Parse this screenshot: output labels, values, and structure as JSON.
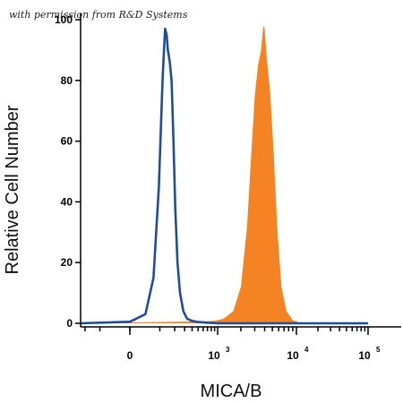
{
  "credit": "with permission from R&D Systems",
  "chart_data": {
    "type": "area",
    "title": "",
    "xlabel": "MICA/B",
    "ylabel": "Relative Cell Number",
    "x_scale": "biexponential",
    "xlim": [
      -300,
      100000
    ],
    "ylim": [
      0,
      100
    ],
    "y_ticks": [
      0,
      20,
      40,
      60,
      80,
      100
    ],
    "x_ticks": [
      {
        "value": 0,
        "base": "0",
        "exp": ""
      },
      {
        "value": 1000,
        "base": "10",
        "exp": "3"
      },
      {
        "value": 10000,
        "base": "10",
        "exp": "4"
      },
      {
        "value": 100000,
        "base": "10",
        "exp": "5"
      }
    ],
    "grid": false,
    "legend": "none",
    "series": [
      {
        "style": "line",
        "color": "#1f4e99",
        "points": [
          [
            -300,
            0
          ],
          [
            0,
            0.5
          ],
          [
            40,
            3
          ],
          [
            70,
            15
          ],
          [
            95,
            45
          ],
          [
            115,
            80
          ],
          [
            130,
            97
          ],
          [
            140,
            95
          ],
          [
            148,
            90
          ],
          [
            155,
            88
          ],
          [
            162,
            86
          ],
          [
            175,
            80
          ],
          [
            190,
            60
          ],
          [
            205,
            38
          ],
          [
            225,
            20
          ],
          [
            250,
            10
          ],
          [
            285,
            4
          ],
          [
            330,
            1.5
          ],
          [
            400,
            0.8
          ],
          [
            500,
            0.4
          ],
          [
            700,
            0.2
          ],
          [
            1000,
            0
          ],
          [
            100000,
            0
          ]
        ]
      },
      {
        "style": "fill",
        "color": "#f48323",
        "points": [
          [
            -300,
            0
          ],
          [
            200,
            0.5
          ],
          [
            600,
            0.6
          ],
          [
            900,
            0.8
          ],
          [
            1200,
            1.5
          ],
          [
            1600,
            4
          ],
          [
            2000,
            12
          ],
          [
            2400,
            32
          ],
          [
            2700,
            55
          ],
          [
            3000,
            75
          ],
          [
            3300,
            85
          ],
          [
            3600,
            90
          ],
          [
            3850,
            98
          ],
          [
            4000,
            97
          ],
          [
            4300,
            86
          ],
          [
            4700,
            76
          ],
          [
            5200,
            56
          ],
          [
            5800,
            30
          ],
          [
            6500,
            12
          ],
          [
            7500,
            4
          ],
          [
            9000,
            1
          ],
          [
            12000,
            0
          ],
          [
            100000,
            0
          ]
        ]
      }
    ]
  }
}
